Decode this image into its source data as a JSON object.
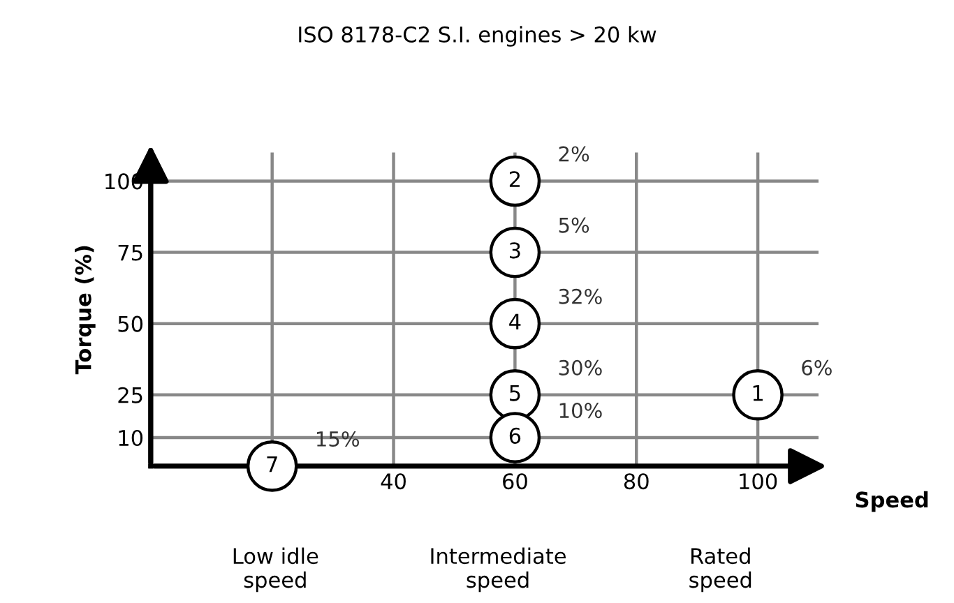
{
  "chart_data": {
    "type": "scatter",
    "title": "ISO 8178-C2 S.I. engines > 20 kw",
    "xlabel": "Speed",
    "ylabel": "Torque (%)",
    "x": [
      100,
      60,
      60,
      60,
      60,
      60,
      20
    ],
    "series": [
      {
        "color": "#000000",
        "values": [
          25,
          100,
          75,
          50,
          25,
          10,
          0
        ]
      }
    ],
    "marker": "circle",
    "xlim": [
      0,
      110
    ],
    "ylim": [
      0,
      110
    ],
    "xticks": [
      {
        "value": 20,
        "label": null
      },
      40,
      60,
      80,
      100
    ],
    "yticks": [
      10,
      25,
      50,
      75,
      100
    ],
    "grid": true,
    "annotations": [
      {
        "text": "1",
        "x": 100,
        "y": 25
      },
      {
        "text": "2",
        "x": 60,
        "y": 100
      },
      {
        "text": "3",
        "x": 60,
        "y": 75
      },
      {
        "text": "4",
        "x": 60,
        "y": 50
      },
      {
        "text": "5",
        "x": 60,
        "y": 25
      },
      {
        "text": "6",
        "x": 60,
        "y": 10
      },
      {
        "text": "7",
        "x": 20,
        "y": 0
      },
      {
        "text": "6%",
        "x": 100,
        "y": 25
      },
      {
        "text": "2%",
        "x": 60,
        "y": 100
      },
      {
        "text": "5%",
        "x": 60,
        "y": 75
      },
      {
        "text": "32%",
        "x": 60,
        "y": 50
      },
      {
        "text": "30%",
        "x": 60,
        "y": 25
      },
      {
        "text": "10%",
        "x": 60,
        "y": 10
      },
      {
        "text": "15%",
        "x": 20,
        "y": 0
      },
      "Low idle\nspeed",
      "Intermediate\nspeed",
      "Rated\nspeed"
    ]
  }
}
